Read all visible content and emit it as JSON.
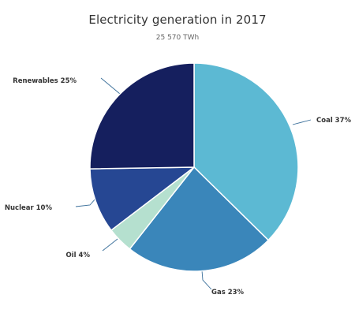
{
  "chart_data": {
    "type": "pie",
    "title": "Electricity generation in 2017",
    "subtitle": "25 570 TWh",
    "slices": [
      {
        "label": "Coal 37%",
        "name": "Coal",
        "value": 37,
        "color": "#5cb9d3"
      },
      {
        "label": "Gas 23%",
        "name": "Gas",
        "value": 23,
        "color": "#3a86ba"
      },
      {
        "label": "Oil 4%",
        "name": "Oil",
        "value": 4,
        "color": "#b5e0cf"
      },
      {
        "label": "Nuclear 10%",
        "name": "Nuclear",
        "value": 10,
        "color": "#264793"
      },
      {
        "label": "Renewables 25%",
        "name": "Renewables",
        "value": 25,
        "color": "#151f5e"
      }
    ],
    "legend": "none",
    "connector_color": "#3a6f9a"
  }
}
